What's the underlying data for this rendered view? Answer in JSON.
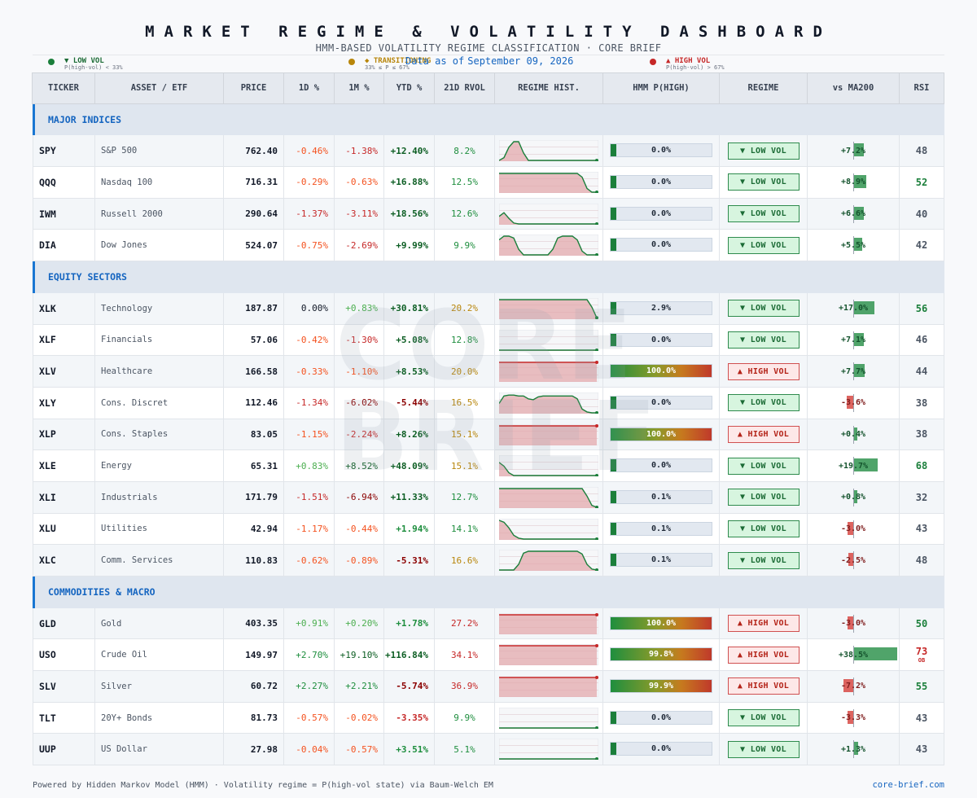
{
  "header": {
    "title": "MARKET REGIME & VOLATILITY DASHBOARD",
    "subtitle": "HMM-BASED VOLATILITY REGIME CLASSIFICATION   ·   CORE BRIEF",
    "as_of_label": "Data as of",
    "as_of_date": "September 09, 2026"
  },
  "legend": [
    {
      "label": "▼ LOW VOL",
      "desc": "P(high-vol) < 33%",
      "color": "#1b7f3b"
    },
    {
      "label": "◆ TRANSITIONING",
      "desc": "33% ≤ P ≤ 67%",
      "color": "#b8860b"
    },
    {
      "label": "▲ HIGH VOL",
      "desc": "P(high-vol) > 67%",
      "color": "#c62828"
    }
  ],
  "columns": [
    "TICKER",
    "ASSET / ETF",
    "PRICE",
    "1D %",
    "1M %",
    "YTD %",
    "21D RVOL",
    "REGIME HIST.",
    "HMM  P(HIGH)",
    "REGIME",
    "vs MA200",
    "RSI"
  ],
  "watermark": [
    "CORE",
    "BRIEF"
  ],
  "colors": {
    "up_strong": "#0b5d22",
    "up_mid": "#1e8e3e",
    "up_light": "#4caf50",
    "down_light": "#f4511e",
    "down_mid": "#c62828",
    "down_strong": "#8b0000",
    "vol_low": "#1e8e3e",
    "vol_mid": "#b8860b",
    "vol_high": "#c62828"
  },
  "groups": [
    {
      "name": "MAJOR INDICES",
      "rows": [
        {
          "ticker": "SPY",
          "name": "S&P 500",
          "price": "762.40",
          "d1": "-0.46%",
          "m1": "-1.38%",
          "ytd": "+12.40%",
          "rvol": "8.2%",
          "hist": [
            0,
            0.15,
            0.7,
            1,
            1,
            0.4,
            0,
            0,
            0,
            0,
            0,
            0,
            0,
            0,
            0,
            0,
            0,
            0,
            0,
            0,
            0
          ],
          "p_high": 0.0,
          "p_text": "0.0%",
          "regime": "▼ LOW VOL",
          "regime_type": "low",
          "ma200": 7.2,
          "ma_text": "+7.2%",
          "rsi": "48",
          "rsi_note": ""
        },
        {
          "ticker": "QQQ",
          "name": "Nasdaq 100",
          "price": "716.31",
          "d1": "-0.29%",
          "m1": "-0.63%",
          "ytd": "+16.88%",
          "rvol": "12.5%",
          "hist": [
            1,
            1,
            1,
            1,
            1,
            1,
            1,
            1,
            1,
            1,
            1,
            1,
            1,
            1,
            1,
            1,
            1,
            0.8,
            0.2,
            0,
            0
          ],
          "p_high": 0.0,
          "p_text": "0.0%",
          "regime": "▼ LOW VOL",
          "regime_type": "low",
          "ma200": 8.9,
          "ma_text": "+8.9%",
          "rsi": "52",
          "rsi_note": ""
        },
        {
          "ticker": "IWM",
          "name": "Russell 2000",
          "price": "290.64",
          "d1": "-1.37%",
          "m1": "-3.11%",
          "ytd": "+18.56%",
          "rvol": "12.6%",
          "hist": [
            0.4,
            0.6,
            0.3,
            0.05,
            0,
            0,
            0,
            0,
            0,
            0,
            0,
            0,
            0,
            0,
            0,
            0,
            0,
            0,
            0,
            0,
            0
          ],
          "p_high": 0.0,
          "p_text": "0.0%",
          "regime": "▼ LOW VOL",
          "regime_type": "low",
          "ma200": 6.6,
          "ma_text": "+6.6%",
          "rsi": "40",
          "rsi_note": ""
        },
        {
          "ticker": "DIA",
          "name": "Dow Jones",
          "price": "524.07",
          "d1": "-0.75%",
          "m1": "-2.69%",
          "ytd": "+9.99%",
          "rvol": "9.9%",
          "hist": [
            0.8,
            1,
            1,
            0.9,
            0.3,
            0,
            0,
            0,
            0,
            0,
            0,
            0.3,
            0.9,
            1,
            1,
            1,
            0.8,
            0.2,
            0,
            0,
            0
          ],
          "p_high": 0.0,
          "p_text": "0.0%",
          "regime": "▼ LOW VOL",
          "regime_type": "low",
          "ma200": 5.5,
          "ma_text": "+5.5%",
          "rsi": "42",
          "rsi_note": ""
        }
      ]
    },
    {
      "name": "EQUITY SECTORS",
      "rows": [
        {
          "ticker": "XLK",
          "name": "Technology",
          "price": "187.87",
          "d1": "0.00%",
          "m1": "+0.83%",
          "ytd": "+30.81%",
          "rvol": "20.2%",
          "hist": [
            1,
            1,
            1,
            1,
            1,
            1,
            1,
            1,
            1,
            1,
            1,
            1,
            1,
            1,
            1,
            1,
            1,
            1,
            1,
            0.6,
            0.03
          ],
          "p_high": 0.029,
          "p_text": "2.9%",
          "regime": "▼ LOW VOL",
          "regime_type": "low",
          "ma200": 17.0,
          "ma_text": "+17.0%",
          "rsi": "56",
          "rsi_note": ""
        },
        {
          "ticker": "XLF",
          "name": "Financials",
          "price": "57.06",
          "d1": "-0.42%",
          "m1": "-1.30%",
          "ytd": "+5.08%",
          "rvol": "12.8%",
          "hist": [
            0,
            0,
            0,
            0,
            0,
            0,
            0,
            0,
            0,
            0,
            0,
            0,
            0,
            0,
            0,
            0,
            0,
            0,
            0,
            0,
            0
          ],
          "p_high": 0.0,
          "p_text": "0.0%",
          "regime": "▼ LOW VOL",
          "regime_type": "low",
          "ma200": 7.1,
          "ma_text": "+7.1%",
          "rsi": "46",
          "rsi_note": ""
        },
        {
          "ticker": "XLV",
          "name": "Healthcare",
          "price": "166.58",
          "d1": "-0.33%",
          "m1": "-1.10%",
          "ytd": "+8.53%",
          "rvol": "20.0%",
          "hist": [
            1,
            1,
            1,
            1,
            1,
            1,
            1,
            1,
            1,
            1,
            1,
            1,
            1,
            1,
            1,
            1,
            1,
            1,
            1,
            1,
            1
          ],
          "p_high": 1.0,
          "p_text": "100.0%",
          "regime": "▲ HIGH VOL",
          "regime_type": "high",
          "ma200": 7.7,
          "ma_text": "+7.7%",
          "rsi": "44",
          "rsi_note": ""
        },
        {
          "ticker": "XLY",
          "name": "Cons. Discret",
          "price": "112.46",
          "d1": "-1.34%",
          "m1": "-6.02%",
          "ytd": "-5.44%",
          "rvol": "16.5%",
          "hist": [
            0.5,
            0.9,
            0.95,
            0.95,
            0.9,
            0.9,
            0.75,
            0.7,
            0.85,
            0.9,
            0.9,
            0.9,
            0.9,
            0.9,
            0.9,
            0.9,
            0.75,
            0.2,
            0.05,
            0,
            0
          ],
          "p_high": 0.0,
          "p_text": "0.0%",
          "regime": "▼ LOW VOL",
          "regime_type": "low",
          "ma200": -3.6,
          "ma_text": "-3.6%",
          "rsi": "38",
          "rsi_note": ""
        },
        {
          "ticker": "XLP",
          "name": "Cons. Staples",
          "price": "83.05",
          "d1": "-1.15%",
          "m1": "-2.24%",
          "ytd": "+8.26%",
          "rvol": "15.1%",
          "hist": [
            1,
            1,
            1,
            1,
            1,
            1,
            1,
            1,
            1,
            1,
            1,
            1,
            1,
            1,
            1,
            1,
            1,
            1,
            1,
            1,
            1
          ],
          "p_high": 1.0,
          "p_text": "100.0%",
          "regime": "▲ HIGH VOL",
          "regime_type": "high",
          "ma200": 0.4,
          "ma_text": "+0.4%",
          "rsi": "38",
          "rsi_note": ""
        },
        {
          "ticker": "XLE",
          "name": "Energy",
          "price": "65.31",
          "d1": "+0.83%",
          "m1": "+8.52%",
          "ytd": "+48.09%",
          "rvol": "15.1%",
          "hist": [
            0.7,
            0.5,
            0.15,
            0,
            0,
            0,
            0,
            0,
            0,
            0,
            0,
            0,
            0,
            0,
            0,
            0,
            0,
            0,
            0,
            0,
            0
          ],
          "p_high": 0.0,
          "p_text": "0.0%",
          "regime": "▼ LOW VOL",
          "regime_type": "low",
          "ma200": 19.7,
          "ma_text": "+19.7%",
          "rsi": "68",
          "rsi_note": ""
        },
        {
          "ticker": "XLI",
          "name": "Industrials",
          "price": "171.79",
          "d1": "-1.51%",
          "m1": "-6.94%",
          "ytd": "+11.33%",
          "rvol": "12.7%",
          "hist": [
            1,
            1,
            1,
            1,
            1,
            1,
            1,
            1,
            1,
            1,
            1,
            1,
            1,
            1,
            1,
            1,
            1,
            1,
            0.6,
            0.1,
            0
          ],
          "p_high": 0.001,
          "p_text": "0.1%",
          "regime": "▼ LOW VOL",
          "regime_type": "low",
          "ma200": 0.8,
          "ma_text": "+0.8%",
          "rsi": "32",
          "rsi_note": ""
        },
        {
          "ticker": "XLU",
          "name": "Utilities",
          "price": "42.94",
          "d1": "-1.17%",
          "m1": "-0.44%",
          "ytd": "+1.94%",
          "rvol": "14.1%",
          "hist": [
            1,
            0.9,
            0.6,
            0.2,
            0.05,
            0,
            0,
            0,
            0,
            0,
            0,
            0,
            0,
            0,
            0,
            0,
            0,
            0,
            0,
            0,
            0
          ],
          "p_high": 0.001,
          "p_text": "0.1%",
          "regime": "▼ LOW VOL",
          "regime_type": "low",
          "ma200": -3.0,
          "ma_text": "-3.0%",
          "rsi": "43",
          "rsi_note": ""
        },
        {
          "ticker": "XLC",
          "name": "Comm. Services",
          "price": "110.83",
          "d1": "-0.62%",
          "m1": "-0.89%",
          "ytd": "-5.31%",
          "rvol": "16.6%",
          "hist": [
            0,
            0,
            0,
            0,
            0.3,
            0.9,
            1,
            1,
            1,
            1,
            1,
            1,
            1,
            1,
            1,
            1,
            1,
            0.85,
            0.3,
            0.05,
            0
          ],
          "p_high": 0.001,
          "p_text": "0.1%",
          "regime": "▼ LOW VOL",
          "regime_type": "low",
          "ma200": -2.5,
          "ma_text": "-2.5%",
          "rsi": "48",
          "rsi_note": ""
        }
      ]
    },
    {
      "name": "COMMODITIES & MACRO",
      "rows": [
        {
          "ticker": "GLD",
          "name": "Gold",
          "price": "403.35",
          "d1": "+0.91%",
          "m1": "+0.20%",
          "ytd": "+1.78%",
          "rvol": "27.2%",
          "hist": [
            1,
            1,
            1,
            1,
            1,
            1,
            1,
            1,
            1,
            1,
            1,
            1,
            1,
            1,
            1,
            1,
            1,
            1,
            1,
            1,
            1
          ],
          "p_high": 1.0,
          "p_text": "100.0%",
          "regime": "▲ HIGH VOL",
          "regime_type": "high",
          "ma200": -3.0,
          "ma_text": "-3.0%",
          "rsi": "50",
          "rsi_note": ""
        },
        {
          "ticker": "USO",
          "name": "Crude Oil",
          "price": "149.97",
          "d1": "+2.70%",
          "m1": "+19.10%",
          "ytd": "+116.84%",
          "rvol": "34.1%",
          "hist": [
            1,
            1,
            1,
            1,
            1,
            1,
            1,
            1,
            1,
            1,
            1,
            1,
            1,
            1,
            1,
            1,
            1,
            1,
            1,
            1,
            1
          ],
          "p_high": 0.998,
          "p_text": "99.8%",
          "regime": "▲ HIGH VOL",
          "regime_type": "high",
          "ma200": 38.5,
          "ma_text": "+38.5%",
          "rsi": "73",
          "rsi_note": "OB"
        },
        {
          "ticker": "SLV",
          "name": "Silver",
          "price": "60.72",
          "d1": "+2.27%",
          "m1": "+2.21%",
          "ytd": "-5.74%",
          "rvol": "36.9%",
          "hist": [
            1,
            1,
            1,
            1,
            1,
            1,
            1,
            1,
            1,
            1,
            1,
            1,
            1,
            1,
            1,
            1,
            1,
            1,
            1,
            1,
            1
          ],
          "p_high": 0.999,
          "p_text": "99.9%",
          "regime": "▲ HIGH VOL",
          "regime_type": "high",
          "ma200": -7.2,
          "ma_text": "-7.2%",
          "rsi": "55",
          "rsi_note": ""
        },
        {
          "ticker": "TLT",
          "name": "20Y+ Bonds",
          "price": "81.73",
          "d1": "-0.57%",
          "m1": "-0.02%",
          "ytd": "-3.35%",
          "rvol": "9.9%",
          "hist": [
            0,
            0,
            0,
            0,
            0,
            0,
            0,
            0,
            0,
            0,
            0,
            0,
            0,
            0,
            0,
            0,
            0,
            0,
            0,
            0,
            0
          ],
          "p_high": 0.0,
          "p_text": "0.0%",
          "regime": "▼ LOW VOL",
          "regime_type": "low",
          "ma200": -3.3,
          "ma_text": "-3.3%",
          "rsi": "43",
          "rsi_note": ""
        },
        {
          "ticker": "UUP",
          "name": "US Dollar",
          "price": "27.98",
          "d1": "-0.04%",
          "m1": "-0.57%",
          "ytd": "+3.51%",
          "rvol": "5.1%",
          "hist": [
            0,
            0,
            0,
            0,
            0,
            0,
            0,
            0,
            0,
            0,
            0,
            0,
            0,
            0,
            0,
            0,
            0,
            0,
            0,
            0,
            0
          ],
          "p_high": 0.0,
          "p_text": "0.0%",
          "regime": "▼ LOW VOL",
          "regime_type": "low",
          "ma200": 1.3,
          "ma_text": "+1.3%",
          "rsi": "43",
          "rsi_note": ""
        }
      ]
    }
  ],
  "footer": {
    "left": "Powered by Hidden Markov Model (HMM) · Volatility regime = P(high-vol state) via Baum-Welch EM",
    "right": "core-brief.com"
  }
}
